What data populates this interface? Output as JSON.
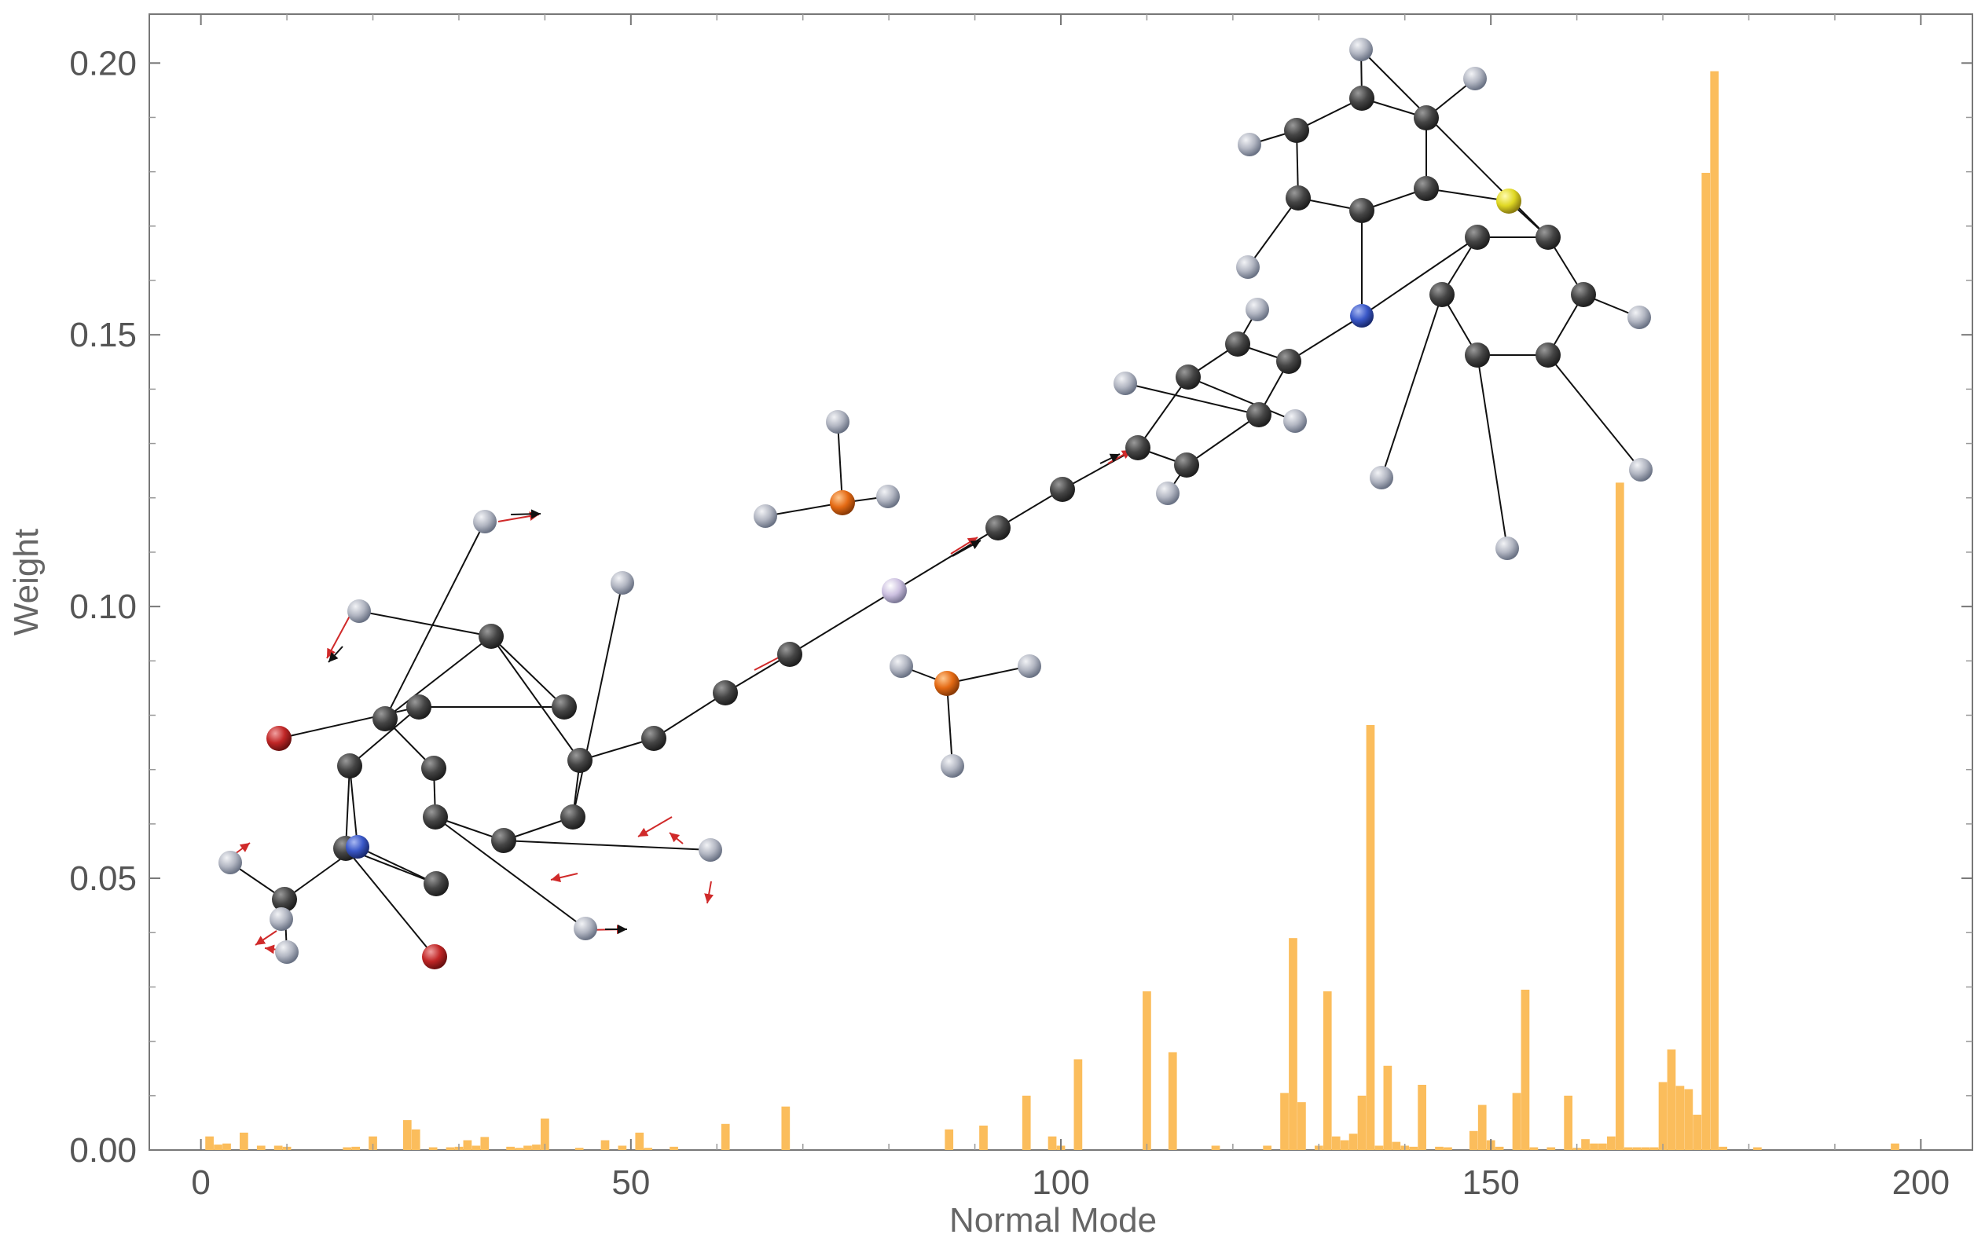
{
  "chart_data": {
    "type": "bar",
    "title": "",
    "xlabel": "Normal Mode",
    "ylabel": "Weight",
    "xlim": [
      -6,
      206
    ],
    "ylim": [
      0,
      0.209
    ],
    "xticks": [
      {
        "value": 0,
        "label": "0"
      },
      {
        "value": 50,
        "label": "50"
      },
      {
        "value": 100,
        "label": "100"
      },
      {
        "value": 150,
        "label": "150"
      },
      {
        "value": 200,
        "label": "200"
      }
    ],
    "yticks": [
      {
        "value": 0.0,
        "label": "0.00"
      },
      {
        "value": 0.05,
        "label": "0.05"
      },
      {
        "value": 0.1,
        "label": "0.10"
      },
      {
        "value": 0.15,
        "label": "0.15"
      },
      {
        "value": 0.2,
        "label": "0.20"
      }
    ],
    "grid": false,
    "bar_color": "#fbbd5c",
    "x": [
      1,
      2,
      3,
      5,
      7,
      9,
      10,
      17,
      18,
      20,
      24,
      25,
      27,
      29,
      30,
      31,
      32,
      33,
      36,
      37,
      38,
      39,
      40,
      44,
      47,
      49,
      51,
      52,
      55,
      61,
      68,
      87,
      91,
      96,
      99,
      100,
      102,
      110,
      113,
      118,
      124,
      126,
      127,
      128,
      130,
      131,
      132,
      133,
      134,
      135,
      136,
      137,
      138,
      139,
      140,
      141,
      142,
      144,
      145,
      148,
      149,
      150,
      151,
      153,
      154,
      155,
      157,
      159,
      160,
      161,
      162,
      163,
      164,
      165,
      166,
      167,
      168,
      169,
      170,
      171,
      172,
      173,
      174,
      175,
      176,
      177,
      181,
      197
    ],
    "values": [
      0.0025,
      0.001,
      0.0012,
      0.0032,
      0.0008,
      0.0008,
      0.0006,
      0.0005,
      0.0006,
      0.0025,
      0.0055,
      0.0038,
      0.0005,
      0.0005,
      0.0006,
      0.0018,
      0.0008,
      0.0024,
      0.0006,
      0.0004,
      0.0008,
      0.001,
      0.0058,
      0.0004,
      0.0018,
      0.0008,
      0.0032,
      0.0004,
      0.0006,
      0.0048,
      0.008,
      0.0038,
      0.0045,
      0.01,
      0.0025,
      0.0008,
      0.0167,
      0.0292,
      0.018,
      0.0008,
      0.0008,
      0.0105,
      0.039,
      0.0088,
      0.0008,
      0.0292,
      0.0025,
      0.0018,
      0.003,
      0.01,
      0.0782,
      0.0008,
      0.0155,
      0.0015,
      0.0008,
      0.0006,
      0.012,
      0.0006,
      0.0005,
      0.0035,
      0.0083,
      0.0018,
      0.0006,
      0.0105,
      0.0295,
      0.0005,
      0.0005,
      0.01,
      0.0004,
      0.002,
      0.0012,
      0.0012,
      0.0025,
      0.1228,
      0.0005,
      0.0005,
      0.0005,
      0.0005,
      0.0125,
      0.0185,
      0.0118,
      0.0112,
      0.0065,
      0.1798,
      0.1985,
      0.0006,
      0.0005,
      0.0012
    ]
  },
  "molecule": {
    "atom_colors": {
      "C": "#4a4a4a",
      "H": "#c6ccd6",
      "N": "#3a58c8",
      "O": "#c82a2a",
      "S": "#e6e02c",
      "P": "#e8701c",
      "X": "#d4c8e6"
    },
    "bond_color": "#111111",
    "arrow_color": "#d02a2a"
  }
}
